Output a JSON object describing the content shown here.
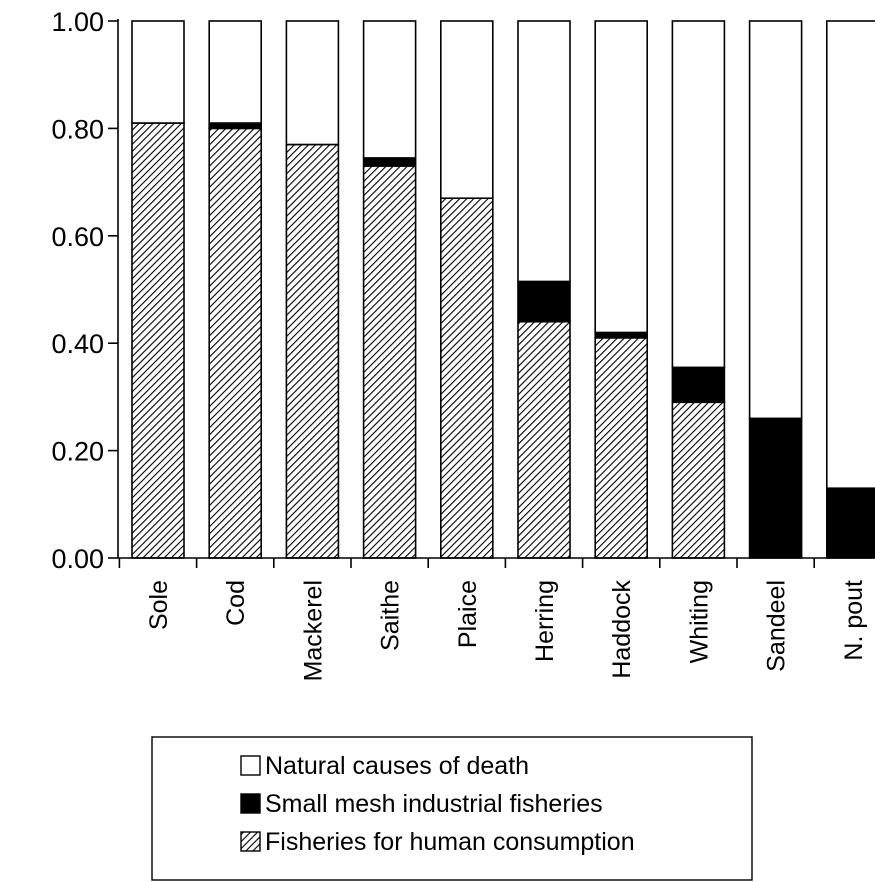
{
  "chart_data": {
    "type": "bar",
    "stacked": true,
    "normalized": true,
    "categories": [
      "Sole",
      "Cod",
      "Mackerel",
      "Saithe",
      "Plaice",
      "Herring",
      "Haddock",
      "Whiting",
      "Sandeel",
      "N. pout"
    ],
    "series": [
      {
        "name": "Fisheries for human consumption",
        "pattern": "diagonal-hatch",
        "color": "#000000",
        "values": [
          0.81,
          0.8,
          0.77,
          0.73,
          0.67,
          0.44,
          0.41,
          0.29,
          0.0,
          0.0
        ]
      },
      {
        "name": "Small mesh industrial fisheries",
        "pattern": "solid",
        "color": "#000000",
        "values": [
          0.0,
          0.01,
          0.0,
          0.015,
          0.0,
          0.075,
          0.01,
          0.065,
          0.26,
          0.13
        ]
      },
      {
        "name": "Natural causes of death",
        "pattern": "none",
        "color": "#ffffff",
        "values": [
          0.19,
          0.19,
          0.23,
          0.255,
          0.33,
          0.485,
          0.58,
          0.645,
          0.74,
          0.87
        ]
      }
    ],
    "ylim": [
      0,
      1
    ],
    "yticks": [
      "0.00",
      "0.20",
      "0.40",
      "0.60",
      "0.80",
      "1.00"
    ],
    "ytick_values": [
      0,
      0.2,
      0.4,
      0.6,
      0.8,
      1.0
    ],
    "xlabel": "",
    "ylabel": "",
    "grid": false,
    "legend_position": "bottom",
    "legend": [
      {
        "label": "Natural causes of death",
        "swatch": "open"
      },
      {
        "label": "Small mesh industrial fisheries",
        "swatch": "solid"
      },
      {
        "label": "Fisheries for human consumption",
        "swatch": "hatched"
      }
    ]
  }
}
